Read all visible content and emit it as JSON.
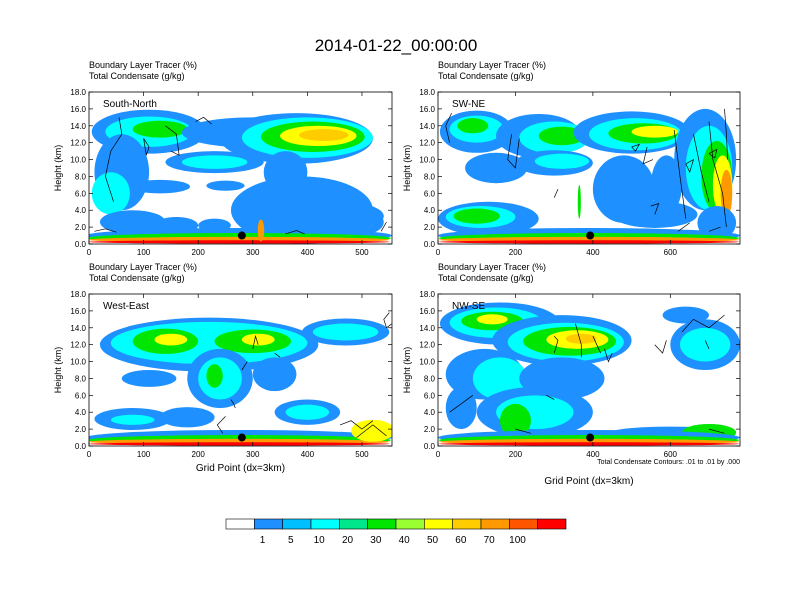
{
  "figure": {
    "title": "2014-01-22_00:00:00",
    "footnote": "Total Condensate Contours: .01 to .01 by .000"
  },
  "chart_data": [
    {
      "type": "heatmap",
      "panel_label": "South-North",
      "subtitle_line1": "Boundary Layer Tracer   (%)",
      "subtitle_line2": "Total Condensate   (g/kg)",
      "ylabel": "Height (km)",
      "xlabel": "",
      "xlim": [
        0,
        555
      ],
      "ylim": [
        0,
        18
      ],
      "xticks": [
        0,
        100,
        200,
        300,
        400,
        500
      ],
      "xtick_labels": [
        "0",
        "100",
        "200",
        "300",
        "400",
        "500"
      ],
      "yticks": [
        0,
        2,
        4,
        6,
        8,
        10,
        12,
        14,
        16,
        18
      ],
      "ytick_labels": [
        "0.0",
        "2.0",
        "4.0",
        "6.0",
        "8.0",
        "10.0",
        "12.0",
        "14.0",
        "16.0",
        "18.0"
      ],
      "marker": {
        "x": 280,
        "y": 1.0
      }
    },
    {
      "type": "heatmap",
      "panel_label": "SW-NE",
      "subtitle_line1": "Boundary Layer Tracer   (%)",
      "subtitle_line2": "Total Condensate   (g/kg)",
      "ylabel": "Height (km)",
      "xlabel": "",
      "xlim": [
        0,
        780
      ],
      "ylim": [
        0,
        18
      ],
      "xticks": [
        0,
        200,
        400,
        600
      ],
      "xtick_labels": [
        "0",
        "200",
        "400",
        "600"
      ],
      "yticks": [
        0,
        2,
        4,
        6,
        8,
        10,
        12,
        14,
        16,
        18
      ],
      "ytick_labels": [
        "0.0",
        "2.0",
        "4.0",
        "6.0",
        "8.0",
        "10.0",
        "12.0",
        "14.0",
        "16.0",
        "18.0"
      ],
      "marker": {
        "x": 393,
        "y": 1.0
      }
    },
    {
      "type": "heatmap",
      "panel_label": "West-East",
      "subtitle_line1": "Boundary Layer Tracer   (%)",
      "subtitle_line2": "Total Condensate   (g/kg)",
      "ylabel": "Height (km)",
      "xlabel": "Grid Point (dx=3km)",
      "xlim": [
        0,
        555
      ],
      "ylim": [
        0,
        18
      ],
      "xticks": [
        0,
        100,
        200,
        300,
        400,
        500
      ],
      "xtick_labels": [
        "0",
        "100",
        "200",
        "300",
        "400",
        "500"
      ],
      "yticks": [
        0,
        2,
        4,
        6,
        8,
        10,
        12,
        14,
        16,
        18
      ],
      "ytick_labels": [
        "0.0",
        "2.0",
        "4.0",
        "6.0",
        "8.0",
        "10.0",
        "12.0",
        "14.0",
        "16.0",
        "18.0"
      ],
      "marker": {
        "x": 280,
        "y": 1.0
      }
    },
    {
      "type": "heatmap",
      "panel_label": "NW-SE",
      "subtitle_line1": "Boundary Layer Tracer   (%)",
      "subtitle_line2": "Total Condensate   (g/kg)",
      "ylabel": "Height (km)",
      "xlabel": "Grid Point (dx=3km)",
      "xlim": [
        0,
        780
      ],
      "ylim": [
        0,
        18
      ],
      "xticks": [
        0,
        200,
        400,
        600
      ],
      "xtick_labels": [
        "0",
        "200",
        "400",
        "600"
      ],
      "yticks": [
        0,
        2,
        4,
        6,
        8,
        10,
        12,
        14,
        16,
        18
      ],
      "ytick_labels": [
        "0.0",
        "2.0",
        "4.0",
        "6.0",
        "8.0",
        "10.0",
        "12.0",
        "14.0",
        "16.0",
        "18.0"
      ],
      "marker": {
        "x": 393,
        "y": 1.0
      }
    }
  ],
  "colorbar": {
    "levels": [
      "1",
      "5",
      "10",
      "20",
      "30",
      "40",
      "50",
      "60",
      "70",
      "100"
    ],
    "colors": [
      "#ffffff",
      "#1e90ff",
      "#00bfff",
      "#00ffff",
      "#00e68a",
      "#00e600",
      "#99ff33",
      "#ffff00",
      "#ffcc00",
      "#ff9900",
      "#ff5500",
      "#ff0000"
    ]
  }
}
